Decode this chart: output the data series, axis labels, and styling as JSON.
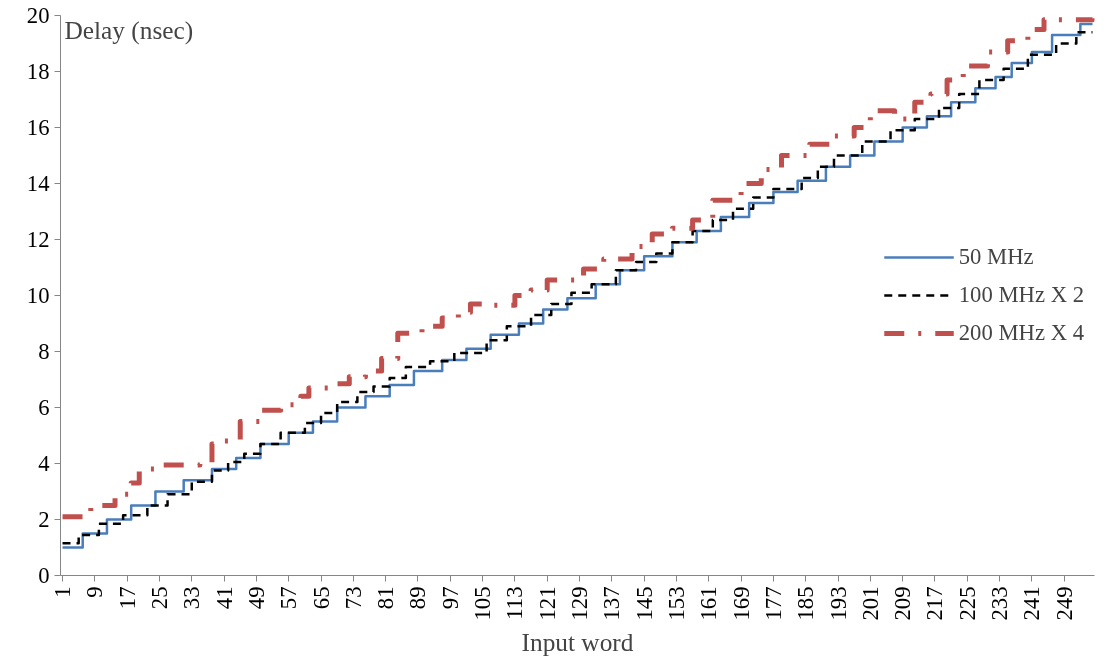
{
  "chart_data": {
    "type": "step",
    "xlabel": "Input word",
    "ylabel": "Delay (nsec)",
    "xlim": [
      0.5,
      256.5
    ],
    "xticks": [
      1,
      9,
      17,
      25,
      33,
      41,
      49,
      57,
      65,
      73,
      81,
      89,
      97,
      105,
      113,
      121,
      129,
      137,
      145,
      153,
      161,
      169,
      177,
      185,
      193,
      201,
      209,
      217,
      225,
      233,
      241,
      249
    ],
    "ylim": [
      0,
      20
    ],
    "yticks": [
      0,
      2,
      4,
      6,
      8,
      10,
      12,
      14,
      16,
      18,
      20
    ],
    "legend": "right",
    "grid": false,
    "series": [
      {
        "name": "50 MHz",
        "color": "#4a7ebb",
        "line_style": "solid",
        "x": [
          1,
          6,
          12,
          18,
          24,
          31,
          38,
          44,
          50,
          57,
          63,
          69,
          76,
          82,
          88,
          95,
          101,
          107,
          114,
          120,
          126,
          133,
          139,
          145,
          152,
          158,
          164,
          171,
          177,
          183,
          190,
          196,
          202,
          209,
          215,
          221,
          227,
          232,
          236,
          241,
          246,
          253,
          256
        ],
        "values": [
          1.0,
          1.5,
          2.0,
          2.5,
          3.0,
          3.4,
          3.8,
          4.2,
          4.7,
          5.1,
          5.5,
          6.0,
          6.4,
          6.8,
          7.3,
          7.7,
          8.1,
          8.6,
          9.0,
          9.5,
          9.9,
          10.4,
          10.9,
          11.4,
          11.9,
          12.3,
          12.8,
          13.3,
          13.7,
          14.1,
          14.6,
          15.0,
          15.5,
          16.0,
          16.4,
          16.9,
          17.4,
          17.8,
          18.3,
          18.7,
          19.3,
          19.7,
          19.7
        ]
      },
      {
        "name": "100 MHz X 2",
        "color": "#000000",
        "line_style": "dashed",
        "x": [
          1,
          5,
          10,
          16,
          22,
          27,
          33,
          38,
          42,
          46,
          50,
          55,
          61,
          65,
          69,
          74,
          78,
          82,
          86,
          92,
          98,
          106,
          111,
          117,
          122,
          127,
          132,
          138,
          143,
          148,
          152,
          157,
          162,
          167,
          172,
          177,
          184,
          188,
          192,
          199,
          206,
          212,
          218,
          223,
          228,
          234,
          240,
          247,
          252,
          256
        ],
        "values": [
          1.15,
          1.45,
          1.85,
          2.15,
          2.5,
          2.9,
          3.35,
          3.75,
          4.05,
          4.35,
          4.7,
          5.1,
          5.45,
          5.8,
          6.2,
          6.55,
          6.75,
          7.05,
          7.45,
          7.65,
          7.95,
          8.4,
          8.9,
          9.3,
          9.7,
          10.1,
          10.4,
          10.9,
          11.2,
          11.5,
          11.9,
          12.3,
          12.7,
          13.1,
          13.5,
          13.8,
          14.2,
          14.6,
          15.0,
          15.5,
          15.9,
          16.3,
          16.7,
          17.2,
          17.7,
          18.1,
          18.6,
          19.0,
          19.4,
          19.4
        ]
      },
      {
        "name": "200 MHz X 4",
        "color": "#c0504d",
        "line_style": "dashdot",
        "x": [
          1,
          8,
          14,
          18,
          20,
          26,
          35,
          38,
          41,
          45,
          50,
          55,
          60,
          62,
          68,
          72,
          76,
          80,
          84,
          90,
          95,
          99,
          102,
          107,
          113,
          117,
          121,
          130,
          135,
          142,
          147,
          152,
          157,
          162,
          169,
          174,
          179,
          186,
          192,
          197,
          201,
          207,
          212,
          216,
          220,
          224,
          230,
          235,
          240,
          244,
          256
        ],
        "values": [
          2.1,
          2.5,
          2.9,
          3.3,
          3.8,
          3.95,
          4.0,
          4.7,
          4.8,
          5.5,
          5.9,
          6.1,
          6.4,
          6.7,
          6.85,
          7.1,
          7.3,
          7.75,
          8.65,
          8.9,
          9.2,
          9.4,
          9.7,
          9.65,
          10.0,
          10.2,
          10.55,
          10.95,
          11.3,
          11.75,
          12.2,
          12.4,
          12.7,
          13.4,
          14.0,
          14.5,
          15.0,
          15.4,
          15.7,
          16.0,
          16.6,
          16.3,
          16.9,
          17.2,
          17.7,
          18.2,
          18.7,
          19.1,
          19.5,
          19.85,
          19.9
        ]
      }
    ]
  }
}
